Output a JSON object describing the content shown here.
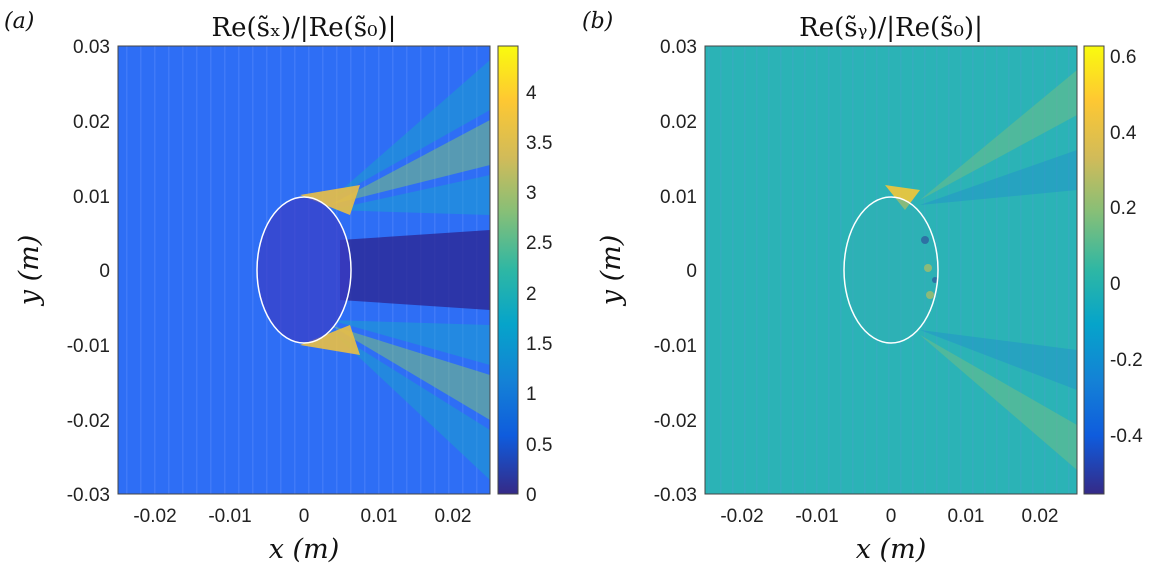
{
  "chart_data": [
    {
      "type": "heatmap",
      "panel_label": "(a)",
      "title": "Re(s̃ₓ)/|Re(s̃₀)|",
      "xlabel": "x (m)",
      "ylabel": "y (m)",
      "xlim": [
        -0.025,
        0.025
      ],
      "ylim": [
        -0.03,
        0.03
      ],
      "xticks": [
        -0.02,
        -0.01,
        0,
        0.01,
        0.02
      ],
      "xtick_labels": [
        "-0.02",
        "-0.01",
        "0",
        "0.01",
        "0.02"
      ],
      "yticks": [
        0.03,
        0.02,
        0.01,
        0,
        -0.01,
        -0.02,
        -0.03
      ],
      "ytick_labels": [
        "0.03",
        "0.02",
        "0.01",
        "0",
        "-0.01",
        "-0.02",
        "-0.03"
      ],
      "colorbar": {
        "range": [
          0,
          4.45
        ],
        "ticks": [
          0,
          0.5,
          1,
          1.5,
          2,
          2.5,
          3,
          3.5,
          4
        ],
        "tick_labels": [
          "0",
          "0.5",
          "1",
          "1.5",
          "2",
          "2.5",
          "3",
          "3.5",
          "4"
        ]
      },
      "background_value": 0.7,
      "ellipse": {
        "cx": 0,
        "cy": 0,
        "rx": 0.0063,
        "ry": 0.0098
      }
    },
    {
      "type": "heatmap",
      "panel_label": "(b)",
      "title": "Re(s̃ᵧ)/|Re(s̃₀)|",
      "xlabel": "x (m)",
      "ylabel": "y (m)",
      "xlim": [
        -0.025,
        0.025
      ],
      "ylim": [
        -0.03,
        0.03
      ],
      "xticks": [
        -0.02,
        -0.01,
        0,
        0.01,
        0.02
      ],
      "xtick_labels": [
        "-0.02",
        "-0.01",
        "0",
        "0.01",
        "0.02"
      ],
      "yticks": [
        0.03,
        0.02,
        0.01,
        0,
        -0.01,
        -0.02,
        -0.03
      ],
      "ytick_labels": [
        "0.03",
        "0.02",
        "0.01",
        "0",
        "-0.01",
        "-0.02",
        "-0.03"
      ],
      "colorbar": {
        "range": [
          -0.55,
          0.63
        ],
        "ticks": [
          0.6,
          0.4,
          0.2,
          0,
          -0.2,
          -0.4
        ],
        "tick_labels": [
          "0.6",
          "0.4",
          "0.2",
          "0",
          "-0.2",
          "-0.4"
        ]
      },
      "background_value": 0.0,
      "ellipse": {
        "cx": 0,
        "cy": 0,
        "rx": 0.0063,
        "ry": 0.0098
      }
    }
  ]
}
